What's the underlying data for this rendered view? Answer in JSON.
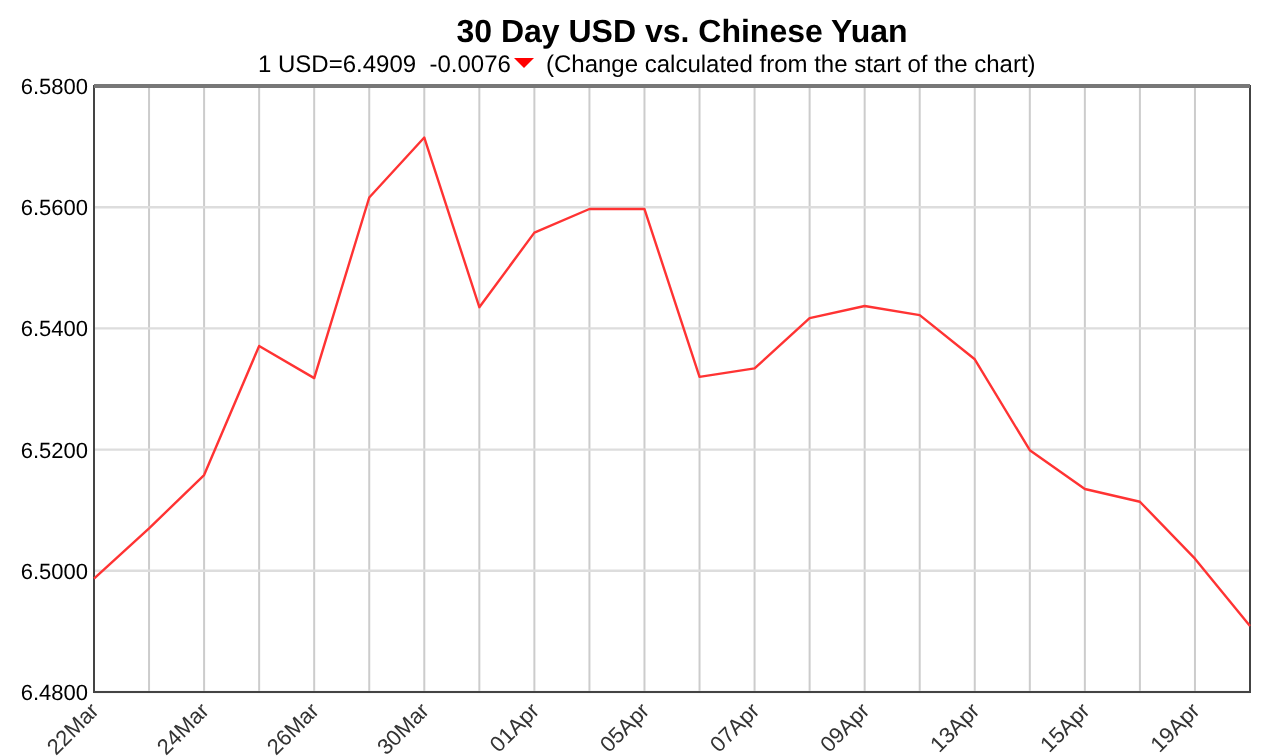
{
  "chart_data": {
    "type": "line",
    "title": "30 Day USD vs. Chinese Yuan",
    "subtitle": "1 USD=6.4909  -0.0076",
    "annotations": [
      "(Change calculated from the start of the chart)"
    ],
    "categories": [
      "22Mar",
      null,
      "24Mar",
      null,
      "26Mar",
      null,
      "30Mar",
      null,
      "01Apr",
      null,
      "05Apr",
      null,
      "07Apr",
      null,
      "09Apr",
      null,
      "13Apr",
      null,
      "15Apr",
      null,
      "19Apr",
      null
    ],
    "series": [
      {
        "color": "#ff3333",
        "values": [
          6.4987,
          6.507,
          6.5158,
          6.5371,
          6.5318,
          6.5616,
          6.5715,
          6.5435,
          6.5558,
          6.5597,
          6.5597,
          6.532,
          6.5334,
          6.5417,
          6.5437,
          6.5422,
          6.5349,
          6.5199,
          6.5135,
          6.5114,
          6.502,
          6.4909
        ]
      }
    ],
    "ylim": [
      6.48,
      6.58
    ],
    "yticks": [
      {
        "value": 6.48,
        "label": "6.4800"
      },
      {
        "value": 6.5,
        "label": "6.5000"
      },
      {
        "value": 6.52,
        "label": "6.5200"
      },
      {
        "value": 6.54,
        "label": "6.5400"
      },
      {
        "value": 6.56,
        "label": "6.5600"
      },
      {
        "value": 6.58,
        "label": "6.5800"
      }
    ],
    "grid": true,
    "marker": "none",
    "line_style": "solid"
  }
}
